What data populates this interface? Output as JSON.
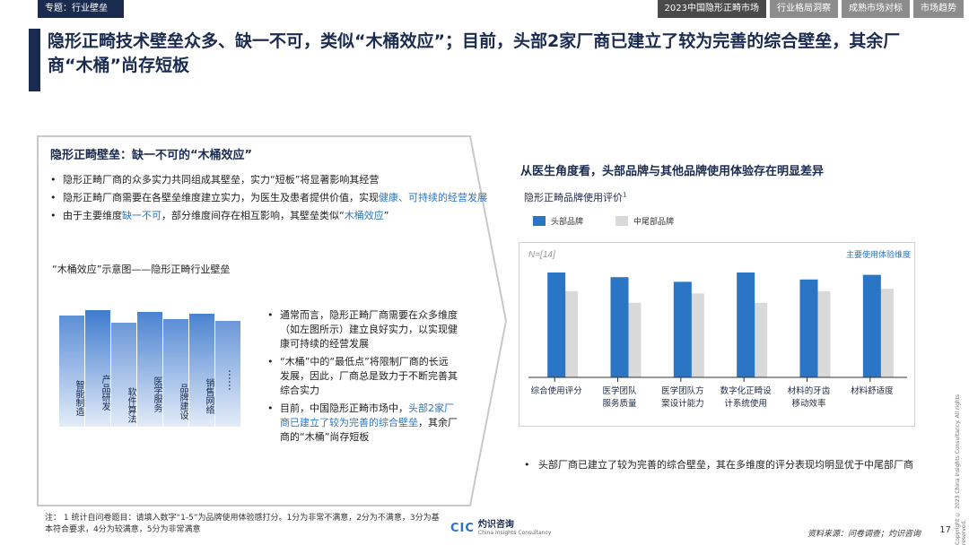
{
  "header": {
    "topic_tag": "专题：行业壁垒",
    "tabs": [
      {
        "label": "2023中国隐形正畸市场",
        "active": true
      },
      {
        "label": "行业格局洞察",
        "active": false
      },
      {
        "label": "成熟市场对标",
        "active": false
      },
      {
        "label": "市场趋势",
        "active": false
      }
    ]
  },
  "headline": "隐形正畸技术壁垒众多、缺一不可，类似“木桶效应”；目前，头部2家厂商已建立了较为完善的综合壁垒，其余厂商“木桶”尚存短板",
  "left_panel": {
    "title": "隐形正畸壁垒：缺一不可的“木桶效应”",
    "bullets": [
      {
        "pre": "隐形正畸厂商的众多实力共同组成其壁垒，实力“短板”将显著影响其经营",
        "hl": "",
        "post": ""
      },
      {
        "pre": "隐形正畸厂商需要在各壁垒维度建立实力，为医生及患者提供价值，实现",
        "hl": "健康、可持续的经营发展",
        "post": ""
      },
      {
        "pre": "由于主要维度",
        "hl": "缺一不可",
        "post": "，部分维度间存在相互影响，其壁垒类似“",
        "hl2": "木桶效应",
        "post2": "”"
      }
    ],
    "diagram_title": "“木桶效应”示意图——隐形正畸行业壁垒",
    "staves": [
      "智能制造",
      "产品研发",
      "软件算法",
      "医学服务",
      "品牌建设",
      "销售网络"
    ],
    "staves_more": "……",
    "diagram_bullets": [
      {
        "pre": "通常而言，隐形正畸厂商需要在众多维度（如左图所示）建立良好实力，以实现健康可持续的经营发展",
        "hl": "",
        "post": ""
      },
      {
        "pre": "“木桶”中的“最低点”将限制厂商的长远发展，因此，厂商总是致力于不断完善其综合实力",
        "hl": "",
        "post": ""
      },
      {
        "pre": "目前，中国隐形正畸市场中，",
        "hl": "头部2家厂商已建立了较为完善的综合壁垒",
        "post": "，其余厂商的“木桶”尚存短板"
      }
    ]
  },
  "right_panel": {
    "heading": "从医生角度看，头部品牌与其他品牌使用体验存在明显差异",
    "chart_title": "隐形正畸品牌使用评价",
    "chart_title_sup": "1",
    "bullet": "头部厂商已建立了较为完善的综合壁垒，其在多维度的评分表现均明显优于中尾部厂商"
  },
  "chart_data": {
    "type": "bar",
    "sample_label": "N=[14]",
    "annotation": "主要使用体验维度",
    "categories": [
      "综合使用评分",
      "医学团队服务质量",
      "医学团队方案设计能力",
      "数字化正畸设计系统使用",
      "材料的牙齿移动效率",
      "材料舒适度"
    ],
    "category_lines": [
      [
        "综合使用评分"
      ],
      [
        "医学团队",
        "服务质量"
      ],
      [
        "医学团队方",
        "案设计能力"
      ],
      [
        "数字化正畸设",
        "计系统使用"
      ],
      [
        "材料的牙齿",
        "移动效率"
      ],
      [
        "材料舒适度"
      ]
    ],
    "series": [
      {
        "name": "头部品牌",
        "color": "#2a76c5",
        "values": [
          4.5,
          4.3,
          4.1,
          4.5,
          4.2,
          4.4
        ]
      },
      {
        "name": "中尾部品牌",
        "color": "#d9d9d9",
        "values": [
          3.7,
          3.2,
          3.6,
          3.2,
          3.7,
          3.8
        ]
      }
    ],
    "ylim": [
      0,
      5
    ],
    "grid": false,
    "legend": "top-left"
  },
  "footer": {
    "footnote": "注： 1    统计自问卷题目：请填入数字“1-5”为品牌使用体验感打分。1分为非常不满意，2分为不满意，3分为基本符合要求，4分为较满意，5分为非常满意",
    "logo_mark": "CIC",
    "logo_name": "灼识咨询",
    "logo_sub": "China Insights Consultancy",
    "source": "资料来源：问卷调查；灼识咨询",
    "page_number": "17",
    "copyright": "Copyright © 2023 China Insights Consultancy. All rights reserved."
  }
}
